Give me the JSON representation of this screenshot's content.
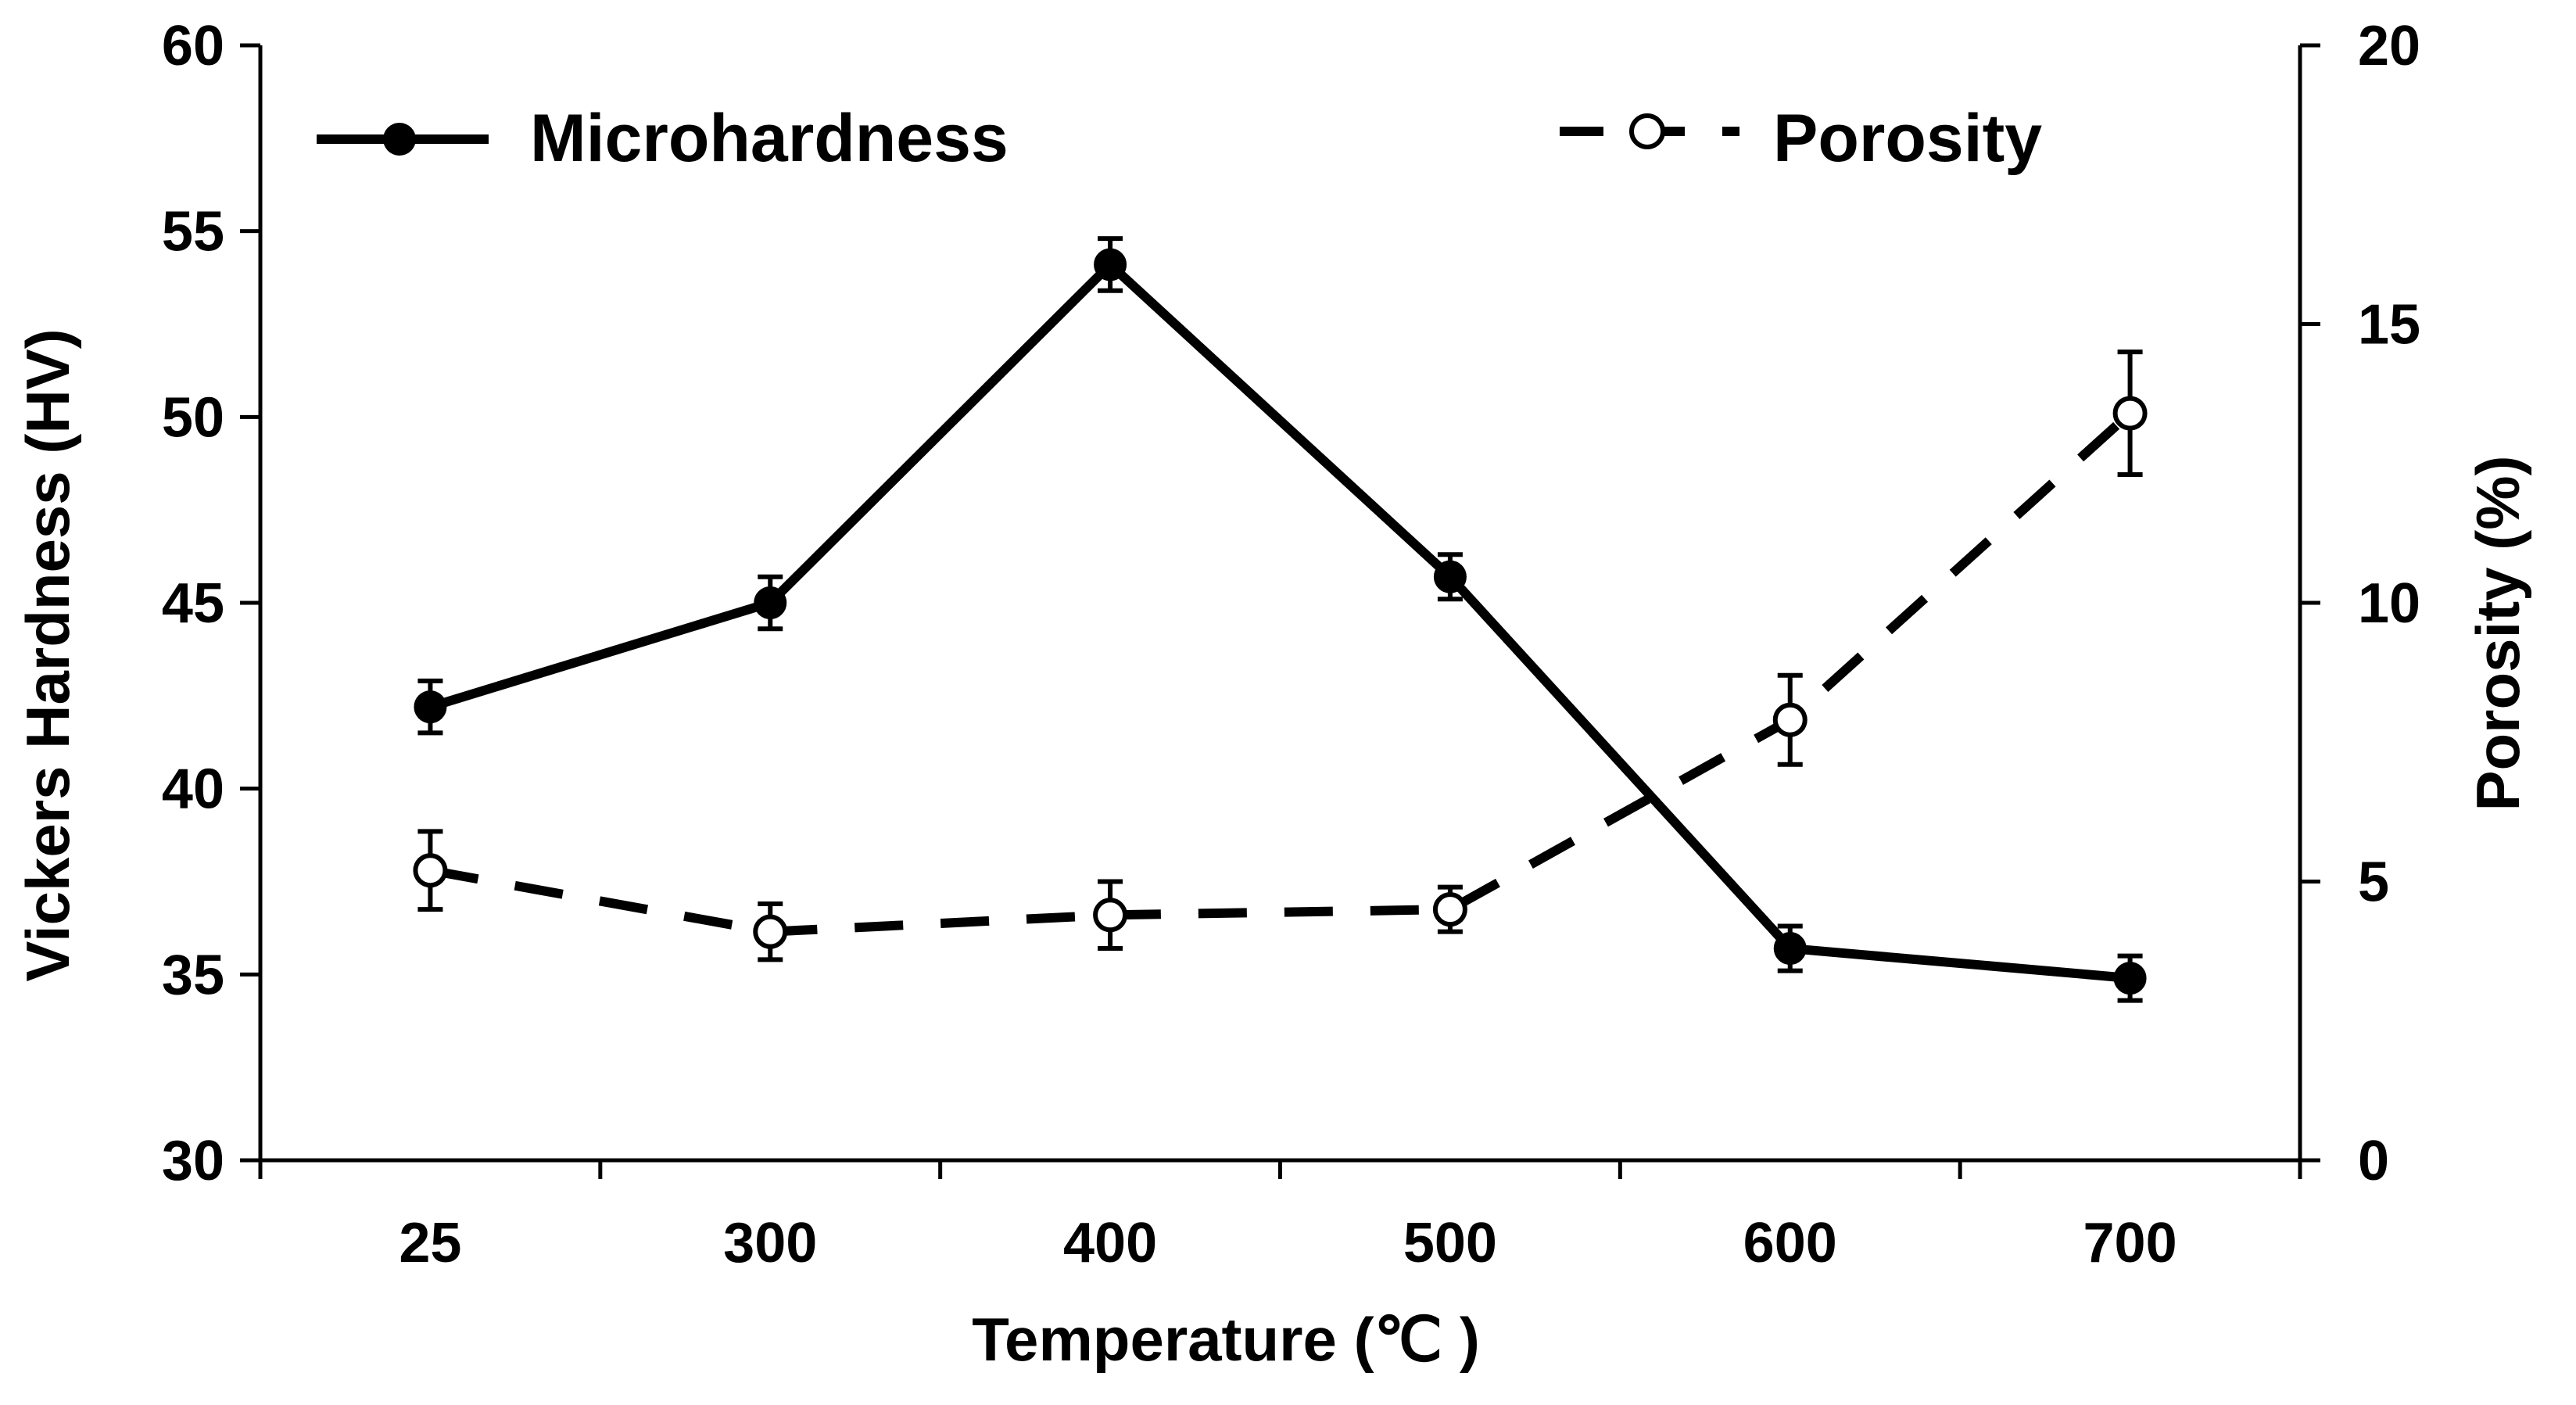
{
  "chart_data": {
    "type": "line",
    "title": "",
    "xlabel": "Temperature (℃ )",
    "ylabel": "Vickers Hardness (HV)",
    "y2label": "Porosity (%)",
    "categories": [
      "25",
      "300",
      "400",
      "500",
      "600",
      "700"
    ],
    "ylim": [
      30,
      60
    ],
    "yticks": [
      "30",
      "35",
      "40",
      "45",
      "50",
      "55",
      "60"
    ],
    "y2lim": [
      0,
      20
    ],
    "y2ticks": [
      "0",
      "5",
      "10",
      "15",
      "20"
    ],
    "legend_position": "top",
    "grid": false,
    "series": [
      {
        "name": "Microhardness",
        "axis": "left",
        "style": "solid",
        "marker": "filled-circle",
        "color": "#000000",
        "values": [
          42.2,
          45.0,
          54.1,
          45.7,
          35.7,
          34.9
        ],
        "errors": [
          0.7,
          0.7,
          0.7,
          0.6,
          0.6,
          0.6
        ]
      },
      {
        "name": "Porosity",
        "axis": "right",
        "style": "dashed",
        "marker": "open-circle",
        "color": "#000000",
        "values": [
          5.2,
          4.1,
          4.4,
          4.5,
          7.9,
          13.4
        ],
        "errors": [
          0.7,
          0.5,
          0.6,
          0.4,
          0.8,
          1.1
        ]
      }
    ]
  }
}
